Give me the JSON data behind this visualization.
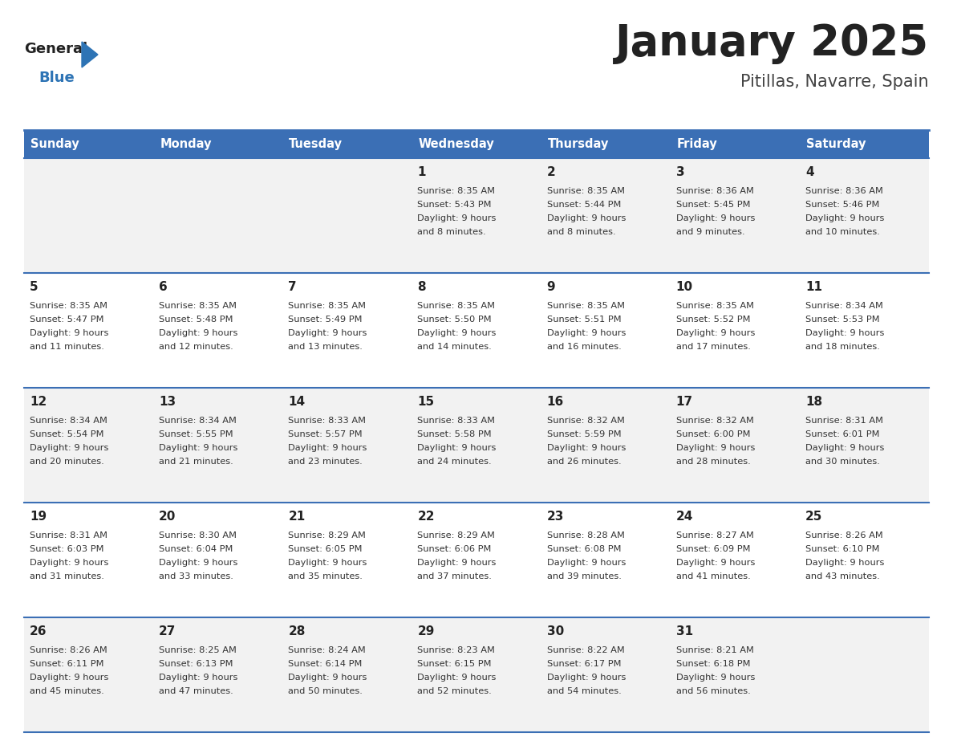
{
  "title": "January 2025",
  "subtitle": "Pitillas, Navarre, Spain",
  "days_of_week": [
    "Sunday",
    "Monday",
    "Tuesday",
    "Wednesday",
    "Thursday",
    "Friday",
    "Saturday"
  ],
  "header_bg": "#3B6FB5",
  "header_text": "#FFFFFF",
  "row_bg_odd": "#F2F2F2",
  "row_bg_even": "#FFFFFF",
  "cell_border": "#3B6FB5",
  "day_num_color": "#222222",
  "text_color": "#333333",
  "title_color": "#222222",
  "subtitle_color": "#444444",
  "logo_general_color": "#222222",
  "logo_blue_color": "#2E74B5",
  "calendar": [
    [
      null,
      null,
      null,
      {
        "day": 1,
        "sunrise": "8:35 AM",
        "sunset": "5:43 PM",
        "daylight": "9 hours\nand 8 minutes."
      },
      {
        "day": 2,
        "sunrise": "8:35 AM",
        "sunset": "5:44 PM",
        "daylight": "9 hours\nand 8 minutes."
      },
      {
        "day": 3,
        "sunrise": "8:36 AM",
        "sunset": "5:45 PM",
        "daylight": "9 hours\nand 9 minutes."
      },
      {
        "day": 4,
        "sunrise": "8:36 AM",
        "sunset": "5:46 PM",
        "daylight": "9 hours\nand 10 minutes."
      }
    ],
    [
      {
        "day": 5,
        "sunrise": "8:35 AM",
        "sunset": "5:47 PM",
        "daylight": "9 hours\nand 11 minutes."
      },
      {
        "day": 6,
        "sunrise": "8:35 AM",
        "sunset": "5:48 PM",
        "daylight": "9 hours\nand 12 minutes."
      },
      {
        "day": 7,
        "sunrise": "8:35 AM",
        "sunset": "5:49 PM",
        "daylight": "9 hours\nand 13 minutes."
      },
      {
        "day": 8,
        "sunrise": "8:35 AM",
        "sunset": "5:50 PM",
        "daylight": "9 hours\nand 14 minutes."
      },
      {
        "day": 9,
        "sunrise": "8:35 AM",
        "sunset": "5:51 PM",
        "daylight": "9 hours\nand 16 minutes."
      },
      {
        "day": 10,
        "sunrise": "8:35 AM",
        "sunset": "5:52 PM",
        "daylight": "9 hours\nand 17 minutes."
      },
      {
        "day": 11,
        "sunrise": "8:34 AM",
        "sunset": "5:53 PM",
        "daylight": "9 hours\nand 18 minutes."
      }
    ],
    [
      {
        "day": 12,
        "sunrise": "8:34 AM",
        "sunset": "5:54 PM",
        "daylight": "9 hours\nand 20 minutes."
      },
      {
        "day": 13,
        "sunrise": "8:34 AM",
        "sunset": "5:55 PM",
        "daylight": "9 hours\nand 21 minutes."
      },
      {
        "day": 14,
        "sunrise": "8:33 AM",
        "sunset": "5:57 PM",
        "daylight": "9 hours\nand 23 minutes."
      },
      {
        "day": 15,
        "sunrise": "8:33 AM",
        "sunset": "5:58 PM",
        "daylight": "9 hours\nand 24 minutes."
      },
      {
        "day": 16,
        "sunrise": "8:32 AM",
        "sunset": "5:59 PM",
        "daylight": "9 hours\nand 26 minutes."
      },
      {
        "day": 17,
        "sunrise": "8:32 AM",
        "sunset": "6:00 PM",
        "daylight": "9 hours\nand 28 minutes."
      },
      {
        "day": 18,
        "sunrise": "8:31 AM",
        "sunset": "6:01 PM",
        "daylight": "9 hours\nand 30 minutes."
      }
    ],
    [
      {
        "day": 19,
        "sunrise": "8:31 AM",
        "sunset": "6:03 PM",
        "daylight": "9 hours\nand 31 minutes."
      },
      {
        "day": 20,
        "sunrise": "8:30 AM",
        "sunset": "6:04 PM",
        "daylight": "9 hours\nand 33 minutes."
      },
      {
        "day": 21,
        "sunrise": "8:29 AM",
        "sunset": "6:05 PM",
        "daylight": "9 hours\nand 35 minutes."
      },
      {
        "day": 22,
        "sunrise": "8:29 AM",
        "sunset": "6:06 PM",
        "daylight": "9 hours\nand 37 minutes."
      },
      {
        "day": 23,
        "sunrise": "8:28 AM",
        "sunset": "6:08 PM",
        "daylight": "9 hours\nand 39 minutes."
      },
      {
        "day": 24,
        "sunrise": "8:27 AM",
        "sunset": "6:09 PM",
        "daylight": "9 hours\nand 41 minutes."
      },
      {
        "day": 25,
        "sunrise": "8:26 AM",
        "sunset": "6:10 PM",
        "daylight": "9 hours\nand 43 minutes."
      }
    ],
    [
      {
        "day": 26,
        "sunrise": "8:26 AM",
        "sunset": "6:11 PM",
        "daylight": "9 hours\nand 45 minutes."
      },
      {
        "day": 27,
        "sunrise": "8:25 AM",
        "sunset": "6:13 PM",
        "daylight": "9 hours\nand 47 minutes."
      },
      {
        "day": 28,
        "sunrise": "8:24 AM",
        "sunset": "6:14 PM",
        "daylight": "9 hours\nand 50 minutes."
      },
      {
        "day": 29,
        "sunrise": "8:23 AM",
        "sunset": "6:15 PM",
        "daylight": "9 hours\nand 52 minutes."
      },
      {
        "day": 30,
        "sunrise": "8:22 AM",
        "sunset": "6:17 PM",
        "daylight": "9 hours\nand 54 minutes."
      },
      {
        "day": 31,
        "sunrise": "8:21 AM",
        "sunset": "6:18 PM",
        "daylight": "9 hours\nand 56 minutes."
      },
      null
    ]
  ]
}
